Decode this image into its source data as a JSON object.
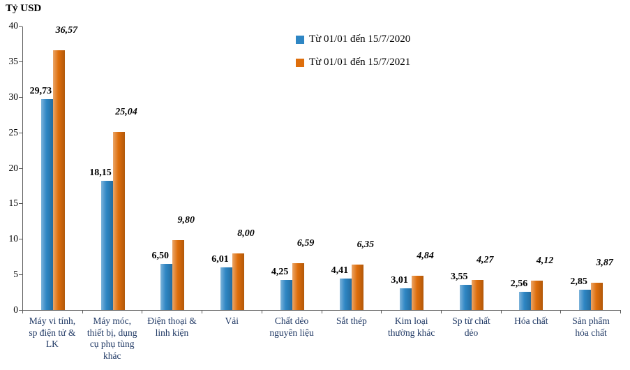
{
  "chart_data": {
    "type": "bar",
    "title": "",
    "ylabel": "Tỷ USD",
    "xlabel": "",
    "ylim": [
      0,
      40
    ],
    "yticks": [
      0,
      5,
      10,
      15,
      20,
      25,
      30,
      35,
      40
    ],
    "grid": false,
    "legend_position": "upper-center-right",
    "categories": [
      "Máy vi tính, sp điện tử & LK",
      "Máy móc, thiết bị, dụng cụ phụ tùng khác",
      "Điện thoại & linh kiện",
      "Vải",
      "Chất dẻo nguyên liệu",
      "Sắt thép",
      "Kim loại thường khác",
      "Sp từ chất dẻo",
      "Hóa chất",
      "Sản phẩm hóa chất"
    ],
    "series": [
      {
        "name": "Từ 01/01 đến 15/7/2020",
        "color": "#2E86C4",
        "values": [
          29.73,
          18.15,
          6.5,
          6.01,
          4.25,
          4.41,
          3.01,
          3.55,
          2.56,
          2.85
        ],
        "labels": [
          "29,73",
          "18,15",
          "6,50",
          "6,01",
          "4,25",
          "4,41",
          "3,01",
          "3,55",
          "2,56",
          "2,85"
        ]
      },
      {
        "name": "Từ 01/01 đến 15/7/2021",
        "color": "#DE6E0C",
        "values": [
          36.57,
          25.04,
          9.8,
          8.0,
          6.59,
          6.35,
          4.84,
          4.27,
          4.12,
          3.87
        ],
        "labels": [
          "36,57",
          "25,04",
          "9,80",
          "8,00",
          "6,59",
          "6,35",
          "4,84",
          "4,27",
          "4,12",
          "3,87"
        ]
      }
    ]
  }
}
